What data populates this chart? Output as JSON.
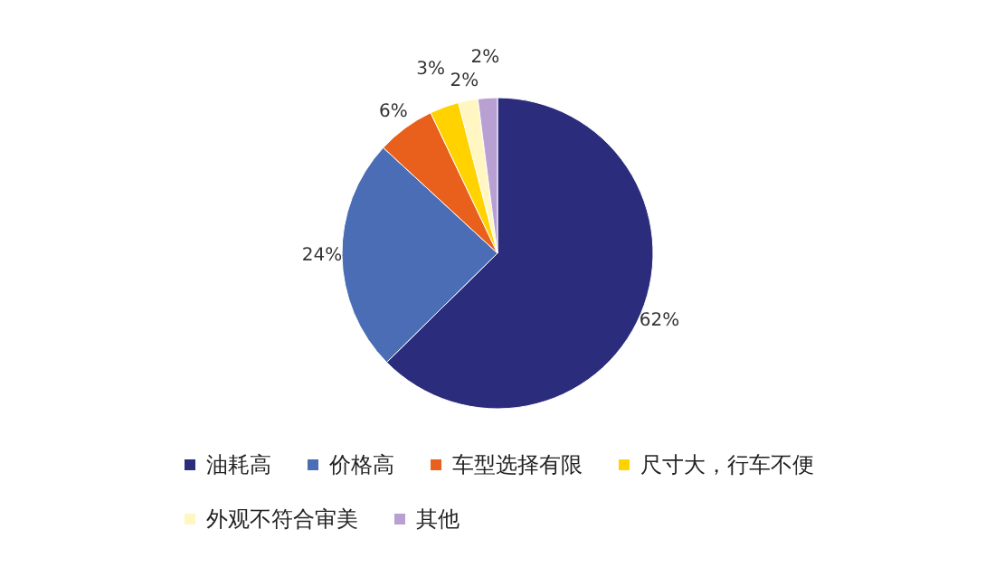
{
  "chart_data": {
    "type": "pie",
    "categories": [
      "油耗高",
      "价格高",
      "车型选择有限",
      "尺寸大，行车不便",
      "外观不符合审美",
      "其他"
    ],
    "values": [
      62,
      24,
      6,
      3,
      2,
      2
    ],
    "colors": [
      "#2b2d7c",
      "#4a6db5",
      "#e8601c",
      "#ffd200",
      "#fff6c2",
      "#b9a0d2"
    ],
    "value_labels": [
      "62%",
      "24%",
      "6%",
      "3%",
      "2%",
      "2%"
    ],
    "legend": "bottom"
  }
}
